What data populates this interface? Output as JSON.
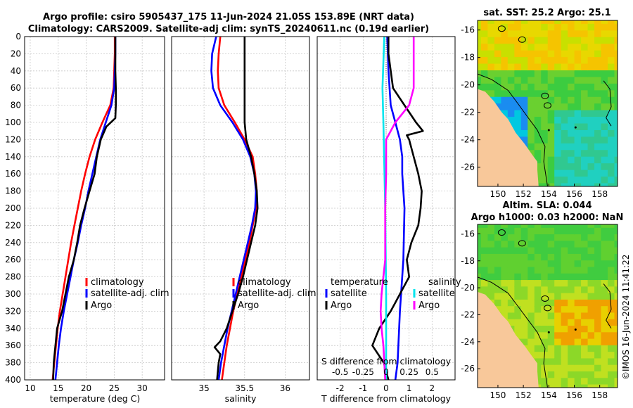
{
  "title_line1": "Argo profile: csiro 5905437_175 11-Jun-2024 21.05S 153.89E (NRT data)",
  "title_line2": "Climatology: CARS2009. Satellite-adj clim: synTS_20240611.nc (0.19d earlier)",
  "footer": "©IMOS 16-Jun-2024 11:41:22",
  "colors": {
    "climatology": "#ff0000",
    "satellite": "#0000ff",
    "argo": "#000000",
    "sat_salinity": "#00e5ee",
    "argo_salinity": "#ff00ff",
    "land": "#f8c89a"
  },
  "chart_data": [
    {
      "type": "line",
      "name": "temperature-profile",
      "xlabel": "temperature (deg C)",
      "ylabel": "",
      "xlim": [
        9,
        34
      ],
      "ylim": [
        400,
        0
      ],
      "xticks": [
        10,
        15,
        20,
        25,
        30
      ],
      "yticks": [
        0,
        20,
        40,
        60,
        80,
        100,
        120,
        140,
        160,
        180,
        200,
        220,
        240,
        260,
        280,
        300,
        320,
        340,
        360,
        380,
        400
      ],
      "legend": [
        "climatology",
        "satellite-adj. clim",
        "Argo"
      ],
      "legend_position": "lower-right",
      "series": [
        {
          "name": "climatology",
          "color": "red",
          "depth": [
            0,
            20,
            40,
            60,
            80,
            100,
            120,
            140,
            160,
            180,
            200,
            220,
            240,
            260,
            280,
            300,
            320,
            340,
            360,
            380,
            400
          ],
          "values": [
            25.1,
            25.1,
            25.0,
            24.9,
            24.3,
            22.9,
            21.6,
            20.6,
            19.8,
            19.1,
            18.5,
            17.9,
            17.3,
            16.8,
            16.3,
            15.8,
            15.3,
            14.9,
            14.6,
            14.3,
            14.0
          ]
        },
        {
          "name": "satellite-adj. clim",
          "color": "blue",
          "depth": [
            0,
            20,
            40,
            60,
            80,
            100,
            120,
            140,
            160,
            180,
            200,
            220,
            240,
            260,
            280,
            300,
            320,
            340,
            360,
            380,
            400
          ],
          "values": [
            25.2,
            25.2,
            25.1,
            25.0,
            24.5,
            23.5,
            22.5,
            21.8,
            21.1,
            20.4,
            19.8,
            19.1,
            18.5,
            17.8,
            17.2,
            16.6,
            16.0,
            15.5,
            15.1,
            14.8,
            14.5
          ]
        },
        {
          "name": "Argo",
          "color": "black",
          "depth": [
            0,
            20,
            40,
            60,
            80,
            95,
            105,
            120,
            140,
            160,
            180,
            200,
            220,
            240,
            260,
            280,
            300,
            320,
            340,
            360,
            380,
            400
          ],
          "values": [
            25.2,
            25.2,
            25.2,
            25.3,
            25.3,
            25.2,
            23.6,
            22.6,
            21.9,
            21.5,
            20.6,
            19.7,
            18.9,
            18.4,
            17.8,
            16.9,
            16.3,
            15.7,
            14.8,
            14.5,
            14.2,
            14.1
          ]
        }
      ]
    },
    {
      "type": "line",
      "name": "salinity-profile",
      "xlabel": "salinity",
      "xlim": [
        34.6,
        36.3
      ],
      "ylim": [
        400,
        0
      ],
      "xticks": [
        35,
        35.5,
        36
      ],
      "legend": [
        "climatology",
        "satellite-adj. clim",
        "Argo"
      ],
      "legend_position": "lower-right",
      "series": [
        {
          "name": "climatology",
          "color": "red",
          "depth": [
            0,
            20,
            40,
            60,
            80,
            100,
            120,
            140,
            160,
            180,
            200,
            220,
            240,
            260,
            280,
            300,
            320,
            340,
            360,
            380,
            400
          ],
          "values": [
            35.2,
            35.18,
            35.17,
            35.18,
            35.25,
            35.38,
            35.5,
            35.6,
            35.63,
            35.65,
            35.64,
            35.6,
            35.56,
            35.51,
            35.46,
            35.41,
            35.36,
            35.32,
            35.28,
            35.25,
            35.22
          ]
        },
        {
          "name": "satellite-adj. clim",
          "color": "blue",
          "depth": [
            0,
            20,
            40,
            60,
            80,
            100,
            120,
            140,
            160,
            180,
            200,
            220,
            240,
            260,
            280,
            300,
            320,
            340,
            360,
            380,
            400
          ],
          "values": [
            35.15,
            35.1,
            35.09,
            35.11,
            35.2,
            35.35,
            35.48,
            35.57,
            35.62,
            35.64,
            35.63,
            35.59,
            35.54,
            35.49,
            35.44,
            35.39,
            35.34,
            35.29,
            35.25,
            35.21,
            35.18
          ]
        },
        {
          "name": "Argo",
          "color": "black",
          "depth": [
            0,
            20,
            40,
            60,
            80,
            100,
            120,
            140,
            160,
            180,
            200,
            220,
            240,
            260,
            280,
            300,
            320,
            340,
            355,
            362,
            370,
            380,
            400
          ],
          "values": [
            35.5,
            35.5,
            35.5,
            35.5,
            35.5,
            35.5,
            35.52,
            35.58,
            35.62,
            35.65,
            35.66,
            35.63,
            35.58,
            35.53,
            35.48,
            35.42,
            35.35,
            35.28,
            35.2,
            35.13,
            35.2,
            35.18,
            35.16
          ]
        }
      ]
    },
    {
      "type": "line",
      "name": "difference-profile",
      "xlabel": "T difference from climatology",
      "top_xlabel": "S difference from climatology",
      "xlim": [
        -3,
        3
      ],
      "ylim": [
        400,
        0
      ],
      "xticks": [
        -2,
        -1,
        0,
        1,
        2
      ],
      "top_xticks": [
        -0.5,
        -0.25,
        0,
        0.25,
        0.5
      ],
      "top_xtick_labels": [
        "-0.5",
        "-0.25",
        "0",
        "0.25",
        "0.5"
      ],
      "legend_temperature_title": "temperature",
      "legend_salinity_title": "salinity",
      "legend_temperature": [
        "satellite",
        "Argo"
      ],
      "legend_salinity": [
        "satellite",
        "Argo"
      ],
      "series": [
        {
          "name": "T satellite",
          "color": "blue",
          "depth": [
            0,
            40,
            80,
            100,
            120,
            140,
            160,
            200,
            260,
            320,
            380,
            400
          ],
          "values": [
            0.05,
            0.1,
            0.2,
            0.4,
            0.6,
            0.7,
            0.7,
            0.8,
            0.75,
            0.6,
            0.5,
            0.4
          ]
        },
        {
          "name": "T Argo",
          "color": "black",
          "depth": [
            0,
            20,
            60,
            80,
            100,
            110,
            115,
            120,
            140,
            160,
            180,
            200,
            220,
            240,
            260,
            280,
            300,
            310,
            320,
            340,
            360,
            380,
            400
          ],
          "values": [
            0.1,
            0.1,
            0.3,
            0.8,
            1.3,
            1.6,
            0.9,
            1.0,
            1.2,
            1.4,
            1.55,
            1.5,
            1.4,
            1.1,
            0.9,
            1.0,
            0.6,
            0.4,
            0.2,
            -0.3,
            -0.6,
            -0.1,
            0.1
          ]
        },
        {
          "name": "S satellite",
          "color": "cyan",
          "depth": [
            0,
            60,
            100,
            200,
            300,
            400
          ],
          "values": [
            -0.02,
            -0.04,
            -0.03,
            -0.01,
            0.0,
            0.0
          ]
        },
        {
          "name": "S Argo",
          "color": "magenta",
          "depth": [
            0,
            20,
            60,
            80,
            100,
            120,
            160,
            200,
            260,
            300,
            320,
            340,
            360,
            380,
            400
          ],
          "values": [
            0.3,
            0.3,
            0.3,
            0.25,
            0.1,
            0.0,
            0.0,
            -0.01,
            -0.01,
            -0.05,
            -0.06,
            -0.05,
            -0.03,
            -0.02,
            -0.01
          ]
        }
      ]
    },
    {
      "type": "heatmap",
      "name": "sst-map",
      "title": "sat. SST: 25.2 Argo: 25.1",
      "xticks": [
        150,
        152,
        154,
        156,
        158
      ],
      "yticks": [
        -16,
        -18,
        -20,
        -22,
        -24,
        -26
      ],
      "xlim": [
        148.4,
        159.4
      ],
      "ylim": [
        -27.4,
        -15.3
      ]
    },
    {
      "type": "heatmap",
      "name": "sla-map",
      "title_line1": "Altim. SLA: 0.044",
      "title_line2": "Argo h1000: 0.03 h2000: NaN",
      "xticks": [
        150,
        152,
        154,
        156,
        158
      ],
      "yticks": [
        -16,
        -18,
        -20,
        -22,
        -24,
        -26
      ],
      "xlim": [
        148.4,
        159.4
      ],
      "ylim": [
        -27.4,
        -15.3
      ]
    }
  ]
}
